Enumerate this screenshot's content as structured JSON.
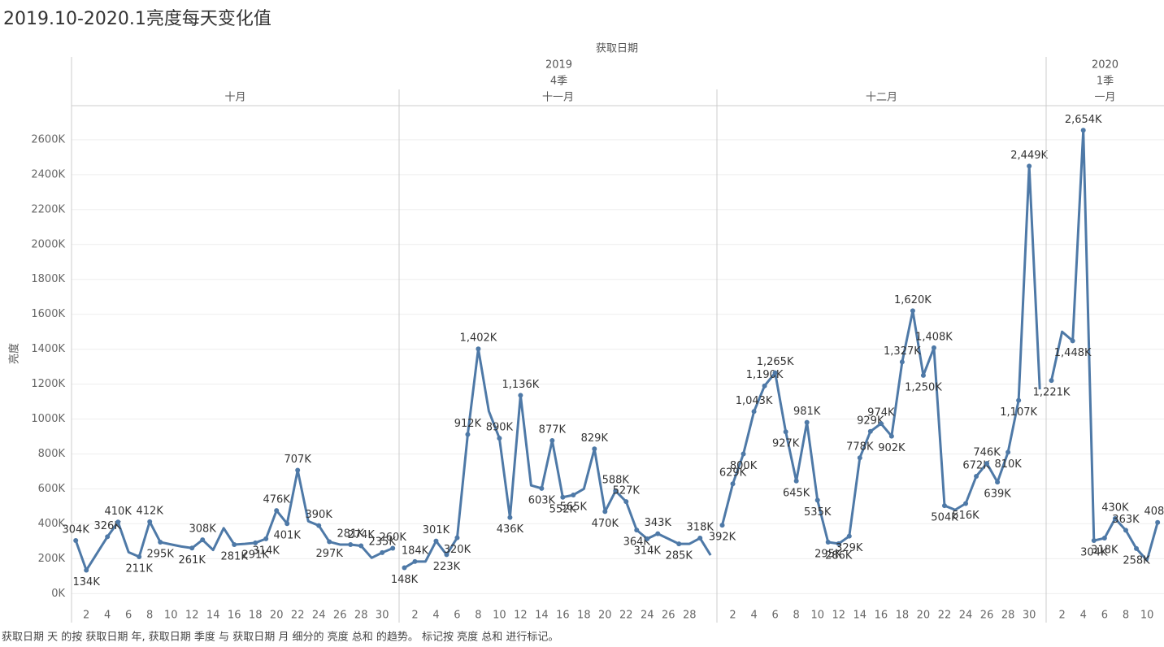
{
  "chart_data": {
    "type": "line",
    "title": "2019.10-2020.1亮度每天变化值",
    "x_header": "获取日期",
    "y_label": "亮度",
    "caption": "获取日期 天 的按 获取日期 年, 获取日期 季度 与 获取日期 月 细分的 亮度 总和 的趋势。 标记按 亮度 总和 进行标记。",
    "color": "#4e79a7",
    "grid": true,
    "ylim": [
      -45,
      2795
    ],
    "yticks": [
      {
        "value": 0,
        "label": "0K"
      },
      {
        "value": 200,
        "label": "200K"
      },
      {
        "value": 400,
        "label": "400K"
      },
      {
        "value": 600,
        "label": "600K"
      },
      {
        "value": 800,
        "label": "800K"
      },
      {
        "value": 1000,
        "label": "1000K"
      },
      {
        "value": 1200,
        "label": "1200K"
      },
      {
        "value": 1400,
        "label": "1400K"
      },
      {
        "value": 1600,
        "label": "1600K"
      },
      {
        "value": 1800,
        "label": "1800K"
      },
      {
        "value": 2000,
        "label": "2000K"
      },
      {
        "value": 2200,
        "label": "2200K"
      },
      {
        "value": 2400,
        "label": "2400K"
      },
      {
        "value": 2600,
        "label": "2600K"
      }
    ],
    "years": [
      {
        "year": "2019",
        "quarters": [
          {
            "quarter": "4季",
            "months": [
              {
                "month": "十月",
                "xlim": [
                  0.6,
                  31.6
                ],
                "x": [
                  1,
                  2,
                  3,
                  4,
                  5,
                  6,
                  7,
                  8,
                  9,
                  10,
                  11,
                  12,
                  13,
                  14,
                  15,
                  16,
                  17,
                  18,
                  19,
                  20,
                  21,
                  22,
                  23,
                  24,
                  25,
                  26,
                  27,
                  28,
                  29,
                  30,
                  31
                ],
                "xticks": [
                  2,
                  4,
                  6,
                  8,
                  10,
                  12,
                  14,
                  16,
                  18,
                  20,
                  22,
                  24,
                  26,
                  28,
                  30
                ],
                "values": [
                  304,
                  134,
                  230,
                  326,
                  410,
                  237,
                  211,
                  412,
                  295,
                  282,
                  270,
                  261,
                  308,
                  250,
                  375,
                  281,
                  285,
                  291,
                  314,
                  476,
                  401,
                  707,
                  415,
                  390,
                  297,
                  281,
                  281,
                  274,
                  205,
                  235,
                  260
                ],
                "value_labels": [
                  "304K",
                  "134K",
                  null,
                  "326K",
                  "410K",
                  null,
                  "211K",
                  "412K",
                  "295K",
                  null,
                  null,
                  "261K",
                  "308K",
                  null,
                  null,
                  "281K",
                  null,
                  "291K",
                  "314K",
                  "476K",
                  "401K",
                  "707K",
                  null,
                  "390K",
                  "297K",
                  null,
                  "281K",
                  "274K",
                  null,
                  "235K",
                  "260K"
                ]
              },
              {
                "month": "十一月",
                "xlim": [
                  0.5,
                  30.6
                ],
                "x": [
                  1,
                  2,
                  3,
                  4,
                  5,
                  6,
                  7,
                  8,
                  9,
                  10,
                  11,
                  12,
                  13,
                  14,
                  15,
                  16,
                  17,
                  18,
                  19,
                  20,
                  21,
                  22,
                  23,
                  24,
                  25,
                  26,
                  27,
                  28,
                  29,
                  30
                ],
                "xticks": [
                  2,
                  4,
                  6,
                  8,
                  10,
                  12,
                  14,
                  16,
                  18,
                  20,
                  22,
                  24,
                  26,
                  28
                ],
                "values": [
                  148,
                  184,
                  184,
                  301,
                  223,
                  320,
                  912,
                  1402,
                  1045,
                  890,
                  436,
                  1136,
                  620,
                  603,
                  877,
                  552,
                  565,
                  600,
                  829,
                  470,
                  588,
                  527,
                  364,
                  314,
                  343,
                  314,
                  285,
                  285,
                  318,
                  220
                ],
                "value_labels": [
                  "148K",
                  "184K",
                  null,
                  "301K",
                  "223K",
                  "320K",
                  "912K",
                  "1,402K",
                  null,
                  "890K",
                  "436K",
                  "1,136K",
                  null,
                  "603K",
                  "877K",
                  "552K",
                  "565K",
                  null,
                  "829K",
                  "470K",
                  "588K",
                  "527K",
                  "364K",
                  "314K",
                  "343K",
                  null,
                  "285K",
                  null,
                  "318K",
                  null
                ]
              },
              {
                "month": "十二月",
                "xlim": [
                  0.5,
                  31.6
                ],
                "x": [
                  1,
                  2,
                  3,
                  4,
                  5,
                  6,
                  7,
                  8,
                  9,
                  10,
                  11,
                  12,
                  13,
                  14,
                  15,
                  16,
                  17,
                  18,
                  19,
                  20,
                  21,
                  22,
                  23,
                  24,
                  25,
                  26,
                  27,
                  28,
                  29,
                  30,
                  31
                ],
                "xticks": [
                  2,
                  4,
                  6,
                  8,
                  10,
                  12,
                  14,
                  16,
                  18,
                  20,
                  22,
                  24,
                  26,
                  28,
                  30
                ],
                "values": [
                  392,
                  629,
                  800,
                  1043,
                  1190,
                  1265,
                  927,
                  645,
                  981,
                  535,
                  295,
                  286,
                  329,
                  778,
                  929,
                  974,
                  902,
                  1327,
                  1620,
                  1250,
                  1408,
                  504,
                  480,
                  516,
                  672,
                  746,
                  639,
                  810,
                  1107,
                  2449,
                  1170
                ],
                "value_labels": [
                  "392K",
                  "629K",
                  "800K",
                  "1,043K",
                  "1,190K",
                  "1,265K",
                  "927K",
                  "645K",
                  "981K",
                  "535K",
                  "295K",
                  "286K",
                  "329K",
                  "778K",
                  "929K",
                  "974K",
                  "902K",
                  "1,327K",
                  "1,620K",
                  "1,250K",
                  "1,408K",
                  "504K",
                  null,
                  "516K",
                  "672K",
                  "746K",
                  "639K",
                  "810K",
                  "1,107K",
                  "2,449K",
                  null
                ]
              }
            ]
          }
        ]
      },
      {
        "year": "2020",
        "quarters": [
          {
            "quarter": "1季",
            "months": [
              {
                "month": "一月",
                "xlim": [
                  0.5,
                  11.6
                ],
                "x": [
                  1,
                  2,
                  3,
                  4,
                  5,
                  6,
                  7,
                  8,
                  9,
                  10,
                  11
                ],
                "xticks": [
                  2,
                  4,
                  6,
                  8,
                  10
                ],
                "values": [
                  1221,
                  1500,
                  1448,
                  2654,
                  304,
                  318,
                  430,
                  363,
                  258,
                  190,
                  408
                ],
                "value_labels": [
                  "1,221K",
                  null,
                  "1,448K",
                  "2,654K",
                  "304K",
                  "318K",
                  "430K",
                  "363K",
                  "258K",
                  null,
                  "408K"
                ]
              }
            ]
          }
        ]
      }
    ]
  }
}
